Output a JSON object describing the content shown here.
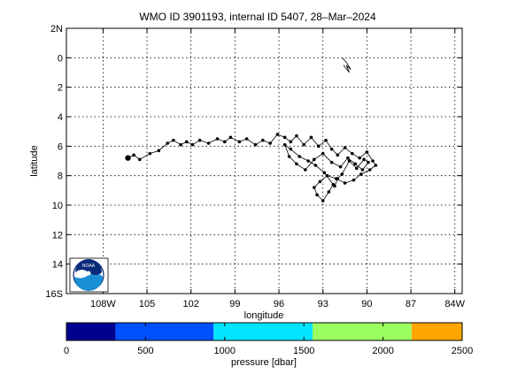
{
  "chart_data": {
    "type": "line",
    "title": "WMO ID 3901193, internal ID 5407, 28–Mar–2024",
    "xlabel": "longitude",
    "ylabel": "latitude",
    "xlim": [
      -110.5,
      -83.5
    ],
    "ylim": [
      -2,
      16
    ],
    "x_ticks": [
      {
        "v": -108,
        "label": "108W"
      },
      {
        "v": -105,
        "label": "105"
      },
      {
        "v": -102,
        "label": "102"
      },
      {
        "v": -99,
        "label": "99"
      },
      {
        "v": -96,
        "label": "96"
      },
      {
        "v": -93,
        "label": "93"
      },
      {
        "v": -90,
        "label": "90"
      },
      {
        "v": -87,
        "label": "87"
      },
      {
        "v": -84,
        "label": "84W"
      }
    ],
    "y_ticks": [
      {
        "v": -2,
        "label": "2N"
      },
      {
        "v": 0,
        "label": "0"
      },
      {
        "v": 2,
        "label": "2"
      },
      {
        "v": 4,
        "label": "4"
      },
      {
        "v": 6,
        "label": "6"
      },
      {
        "v": 8,
        "label": "8"
      },
      {
        "v": 10,
        "label": "10"
      },
      {
        "v": 12,
        "label": "12"
      },
      {
        "v": 14,
        "label": "14"
      },
      {
        "v": 16,
        "label": "16S"
      }
    ],
    "grid": true,
    "track": {
      "x": [
        -106.3,
        -105.9,
        -105.5,
        -104.8,
        -104.2,
        -103.6,
        -103.2,
        -102.7,
        -102.3,
        -101.9,
        -101.4,
        -100.8,
        -100.2,
        -99.7,
        -99.3,
        -98.7,
        -98.2,
        -97.6,
        -97.1,
        -96.6,
        -96.1,
        -95.6,
        -95.2,
        -94.8,
        -94.3,
        -93.8,
        -93.3,
        -92.8,
        -92.4,
        -92.0,
        -91.5,
        -91.0,
        -90.5,
        -90.0,
        -89.6,
        -89.4,
        -89.8,
        -90.4,
        -90.9,
        -91.5,
        -92.1,
        -92.7,
        -93.2,
        -93.6,
        -93.4,
        -93.0,
        -92.6,
        -92.3,
        -92.9,
        -93.5,
        -94.0,
        -94.6,
        -95.2,
        -95.6,
        -95.3,
        -94.8,
        -94.2,
        -93.6,
        -93.0,
        -92.4,
        -91.8,
        -91.3,
        -90.8,
        -90.3,
        -89.9,
        -90.2,
        -90.7,
        -91.2,
        -91.7,
        -92.0,
        -92.2
      ],
      "y": [
        6.8,
        6.6,
        6.9,
        6.5,
        6.3,
        5.8,
        5.6,
        5.9,
        5.7,
        5.9,
        5.6,
        5.8,
        5.5,
        5.7,
        5.4,
        5.7,
        5.5,
        5.9,
        5.6,
        5.8,
        5.2,
        5.4,
        5.7,
        5.3,
        5.9,
        5.4,
        6.0,
        5.6,
        6.2,
        6.6,
        6.1,
        6.5,
        6.8,
        6.4,
        7.0,
        7.3,
        7.6,
        7.9,
        8.3,
        8.5,
        8.2,
        8.0,
        8.4,
        8.8,
        9.3,
        9.7,
        9.1,
        8.6,
        7.8,
        7.3,
        7.0,
        6.7,
        6.2,
        5.9,
        6.7,
        7.2,
        7.6,
        6.9,
        6.5,
        7.1,
        7.4,
        6.8,
        7.2,
        7.6,
        7.1,
        6.9,
        7.5,
        7.0,
        7.9,
        8.2,
        8.7
      ]
    },
    "small_marker": {
      "x": [
        -91.7,
        -91.4,
        -91.1,
        -91.4,
        -91.2,
        -91.6
      ],
      "y": [
        0.0,
        0.3,
        0.8,
        0.5,
        1.0,
        0.5
      ]
    },
    "colorbar": {
      "label": "pressure [dbar]",
      "range": [
        0,
        2500
      ],
      "ticks": [
        {
          "v": 0,
          "label": "0"
        },
        {
          "v": 500,
          "label": "500"
        },
        {
          "v": 1000,
          "label": "1000"
        },
        {
          "v": 1500,
          "label": "1500"
        },
        {
          "v": 2000,
          "label": "2000"
        },
        {
          "v": 2500,
          "label": "2500"
        }
      ],
      "bands": [
        {
          "from": 0,
          "to": 310,
          "color": "#00008f"
        },
        {
          "from": 310,
          "to": 930,
          "color": "#0050ff"
        },
        {
          "from": 930,
          "to": 1555,
          "color": "#00e4ff"
        },
        {
          "from": 1555,
          "to": 2180,
          "color": "#9cff60"
        },
        {
          "from": 2180,
          "to": 2500,
          "color": "#ffa600"
        }
      ]
    },
    "logo": {
      "text": "NOAA"
    }
  }
}
